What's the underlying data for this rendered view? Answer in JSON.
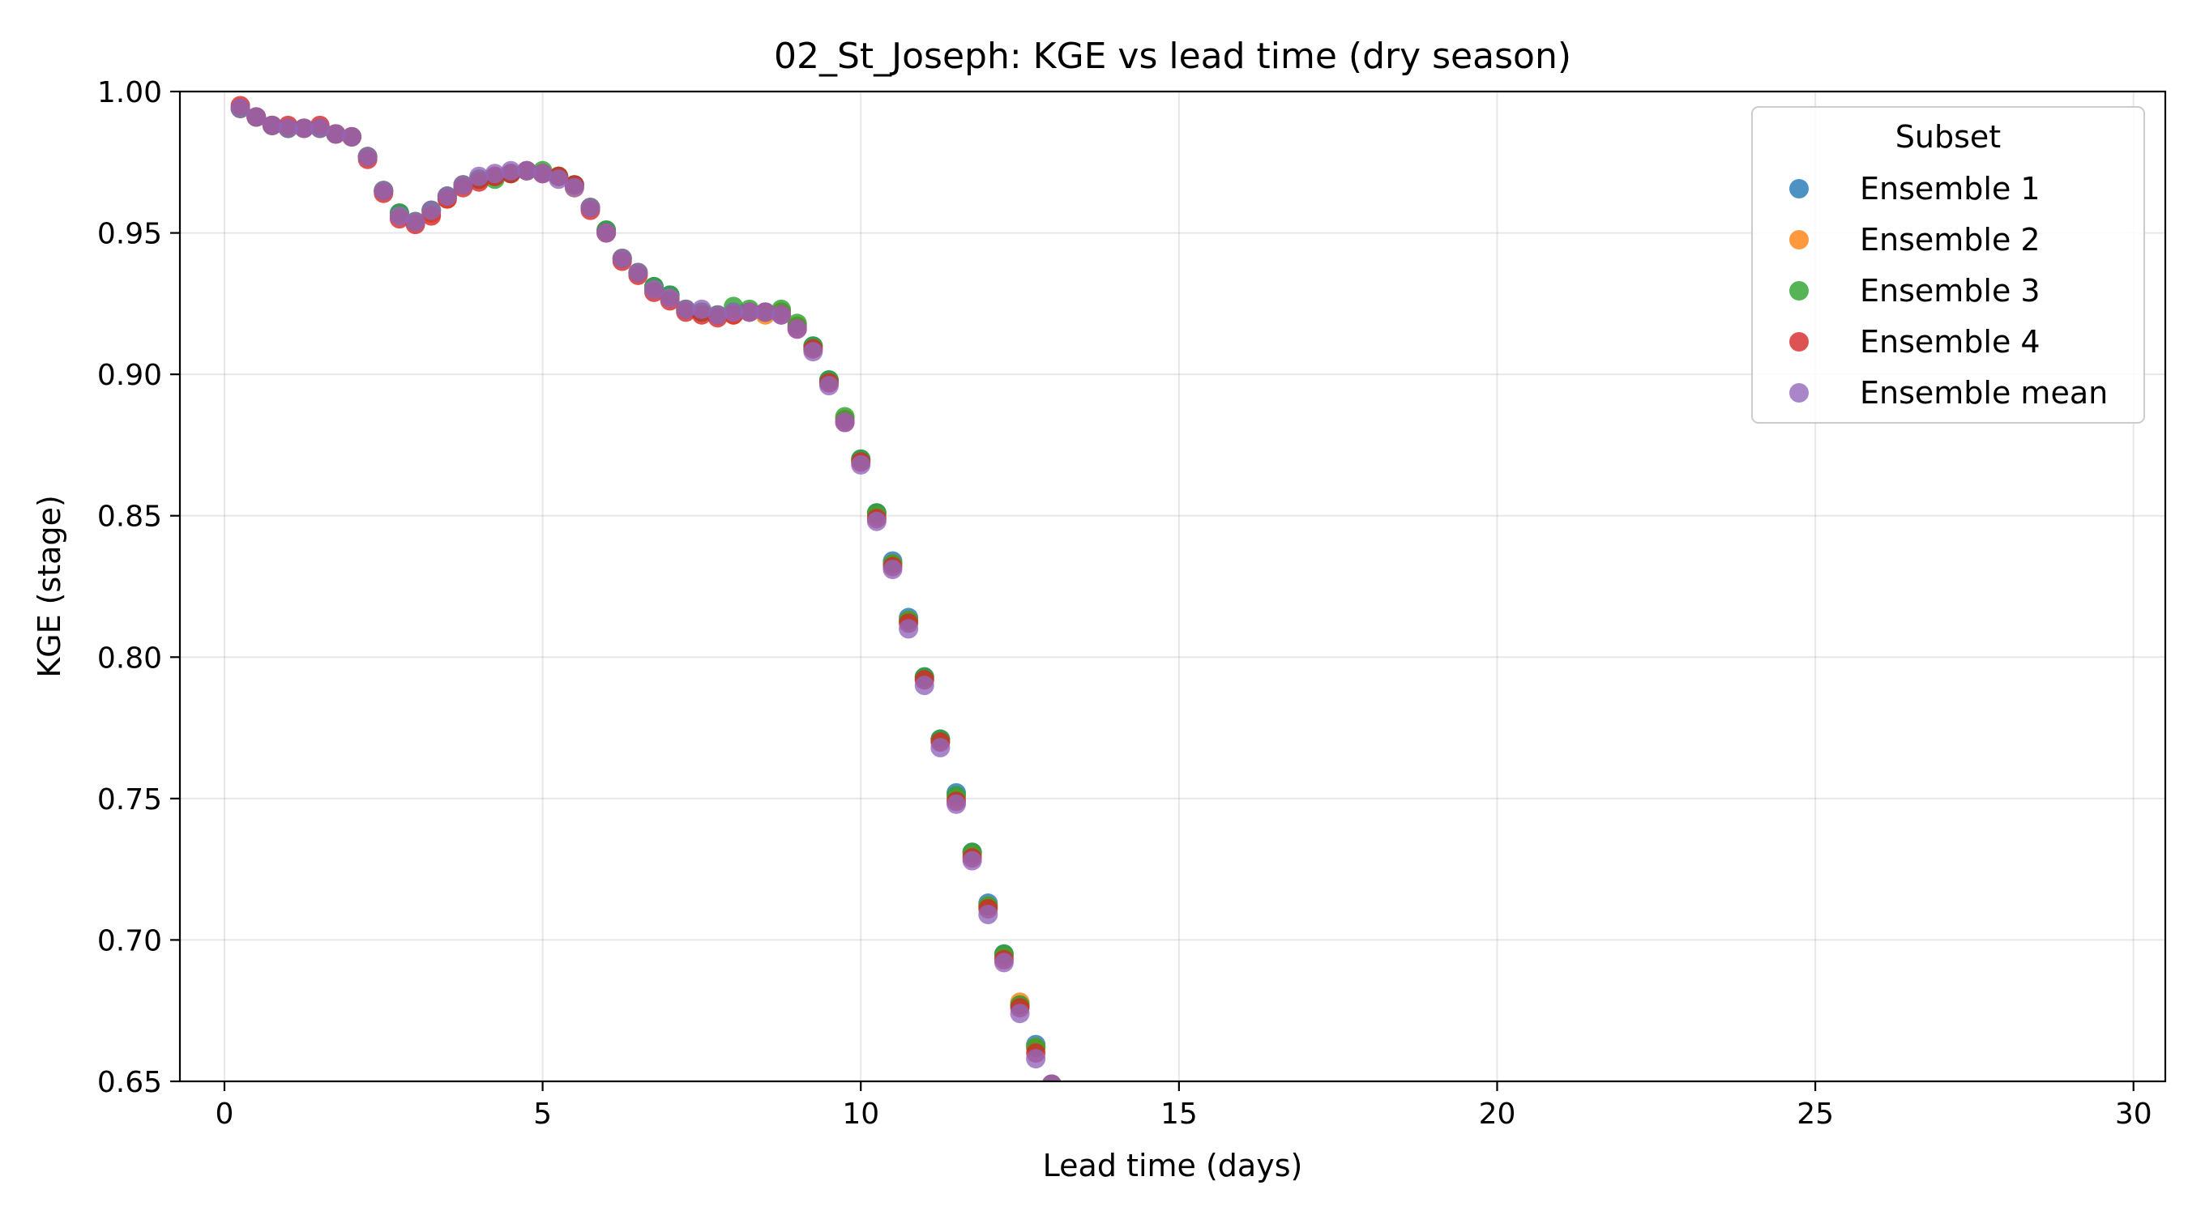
{
  "chart_data": {
    "type": "scatter",
    "title": "02_St_Joseph: KGE vs lead time (dry season)",
    "xlabel": "Lead time (days)",
    "ylabel": "KGE (stage)",
    "xlim": [
      -0.7,
      30.5
    ],
    "ylim": [
      0.65,
      1.0
    ],
    "xticks": [
      0,
      5,
      10,
      15,
      20,
      25,
      30
    ],
    "yticks": [
      0.65,
      0.7,
      0.75,
      0.8,
      0.85,
      0.9,
      0.95,
      1.0
    ],
    "ytick_labels": [
      "0.65",
      "0.70",
      "0.75",
      "0.80",
      "0.85",
      "0.90",
      "0.95",
      "1.00"
    ],
    "grid": true,
    "legend": {
      "title": "Subset",
      "placement": "upper right"
    },
    "x": [
      0.25,
      0.5,
      0.75,
      1.0,
      1.25,
      1.5,
      1.75,
      2.0,
      2.25,
      2.5,
      2.75,
      3.0,
      3.25,
      3.5,
      3.75,
      4.0,
      4.25,
      4.5,
      4.75,
      5.0,
      5.25,
      5.5,
      5.75,
      6.0,
      6.25,
      6.5,
      6.75,
      7.0,
      7.25,
      7.5,
      7.75,
      8.0,
      8.25,
      8.5,
      8.75,
      9.0,
      9.25,
      9.5,
      9.75,
      10.0,
      10.25,
      10.5,
      10.75,
      11.0,
      11.25,
      11.5,
      11.75,
      12.0,
      12.25,
      12.5,
      12.75,
      13.0
    ],
    "series": [
      {
        "name": "Ensemble 1",
        "color": "#1f77b4",
        "values": [
          0.994,
          0.991,
          0.988,
          0.987,
          0.987,
          0.987,
          0.985,
          0.984,
          0.977,
          0.965,
          0.957,
          0.954,
          0.958,
          0.963,
          0.967,
          0.969,
          0.97,
          0.971,
          0.972,
          0.971,
          0.97,
          0.967,
          0.959,
          0.951,
          0.941,
          0.936,
          0.931,
          0.928,
          0.923,
          0.922,
          0.921,
          0.922,
          0.922,
          0.922,
          0.922,
          0.917,
          0.91,
          0.898,
          0.884,
          0.87,
          0.851,
          0.834,
          0.814,
          0.793,
          0.771,
          0.752,
          0.731,
          0.713,
          0.695,
          0.677,
          0.663,
          0.649
        ]
      },
      {
        "name": "Ensemble 2",
        "color": "#ff7f0e",
        "values": [
          0.994,
          0.991,
          0.988,
          0.987,
          0.987,
          0.987,
          0.985,
          0.984,
          0.977,
          0.965,
          0.956,
          0.954,
          0.957,
          0.962,
          0.967,
          0.969,
          0.97,
          0.971,
          0.972,
          0.971,
          0.97,
          0.966,
          0.959,
          0.95,
          0.941,
          0.936,
          0.93,
          0.927,
          0.923,
          0.922,
          0.921,
          0.921,
          0.922,
          0.921,
          0.922,
          0.917,
          0.909,
          0.897,
          0.884,
          0.869,
          0.85,
          0.833,
          0.813,
          0.792,
          0.77,
          0.75,
          0.73,
          0.712,
          0.694,
          0.678,
          0.662,
          0.649
        ]
      },
      {
        "name": "Ensemble 3",
        "color": "#2ca02c",
        "values": [
          0.994,
          0.991,
          0.988,
          0.987,
          0.987,
          0.987,
          0.985,
          0.984,
          0.977,
          0.965,
          0.957,
          0.954,
          0.958,
          0.963,
          0.967,
          0.969,
          0.969,
          0.971,
          0.972,
          0.972,
          0.97,
          0.967,
          0.959,
          0.951,
          0.941,
          0.936,
          0.931,
          0.928,
          0.923,
          0.922,
          0.921,
          0.924,
          0.923,
          0.922,
          0.923,
          0.918,
          0.91,
          0.898,
          0.885,
          0.87,
          0.851,
          0.833,
          0.813,
          0.793,
          0.771,
          0.751,
          0.731,
          0.712,
          0.695,
          0.677,
          0.662,
          0.649
        ]
      },
      {
        "name": "Ensemble 4",
        "color": "#d62728",
        "values": [
          0.995,
          0.991,
          0.988,
          0.988,
          0.987,
          0.988,
          0.985,
          0.984,
          0.976,
          0.964,
          0.955,
          0.953,
          0.956,
          0.962,
          0.966,
          0.968,
          0.97,
          0.971,
          0.972,
          0.971,
          0.97,
          0.967,
          0.958,
          0.95,
          0.94,
          0.935,
          0.929,
          0.926,
          0.922,
          0.921,
          0.92,
          0.921,
          0.922,
          0.922,
          0.921,
          0.916,
          0.909,
          0.897,
          0.883,
          0.869,
          0.849,
          0.832,
          0.812,
          0.792,
          0.77,
          0.749,
          0.729,
          0.711,
          0.693,
          0.676,
          0.66,
          0.649
        ]
      },
      {
        "name": "Ensemble mean",
        "color": "#9467bd",
        "values": [
          0.994,
          0.991,
          0.988,
          0.987,
          0.987,
          0.987,
          0.985,
          0.984,
          0.977,
          0.965,
          0.956,
          0.954,
          0.958,
          0.963,
          0.967,
          0.97,
          0.971,
          0.972,
          0.972,
          0.971,
          0.969,
          0.966,
          0.959,
          0.95,
          0.941,
          0.936,
          0.93,
          0.927,
          0.923,
          0.923,
          0.921,
          0.922,
          0.922,
          0.922,
          0.921,
          0.916,
          0.908,
          0.896,
          0.883,
          0.868,
          0.848,
          0.831,
          0.81,
          0.79,
          0.768,
          0.748,
          0.728,
          0.709,
          0.692,
          0.674,
          0.658,
          0.649
        ]
      }
    ]
  }
}
